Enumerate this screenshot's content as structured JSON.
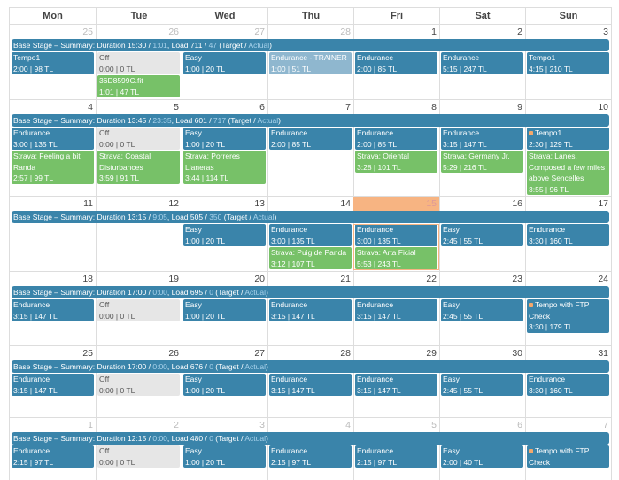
{
  "weekdays": [
    "Mon",
    "Tue",
    "Wed",
    "Thu",
    "Fri",
    "Sat",
    "Sun"
  ],
  "colors": {
    "planned": "#3a84aa",
    "completed": "#77c168",
    "off": "#e6e6e6",
    "trainer": "#8fb7cf",
    "today": "#f7b482"
  },
  "summary_labels": {
    "prefix": "Base Stage – Summary: Duration ",
    "sep": " / ",
    "load": ", Load ",
    "target_label": " (Target / ",
    "actual_label": "Actual",
    "close": ")"
  },
  "weeks": [
    {
      "dates": [
        {
          "n": "25",
          "muted": true
        },
        {
          "n": "26",
          "muted": true
        },
        {
          "n": "27",
          "muted": true
        },
        {
          "n": "28",
          "muted": true
        },
        {
          "n": "1"
        },
        {
          "n": "2"
        },
        {
          "n": "3"
        }
      ],
      "summary": {
        "duration_target": "15:30",
        "duration_actual": "1:01",
        "load_target": "711",
        "load_actual": "47"
      },
      "days": [
        [
          {
            "title": "Tempo1",
            "stats": "2:00 | 98 TL",
            "type": "planned"
          }
        ],
        [
          {
            "title": "Off",
            "stats": "0:00 | 0 TL",
            "type": "off"
          },
          {
            "title": "36D8599C.fit",
            "stats": "1:01 | 47 TL",
            "type": "completed"
          }
        ],
        [
          {
            "title": "Easy",
            "stats": "1:00 | 20 TL",
            "type": "planned"
          }
        ],
        [
          {
            "title": "Endurance - TRAINER",
            "stats": "1:00 | 51 TL",
            "type": "trainer"
          }
        ],
        [
          {
            "title": "Endurance",
            "stats": "2:00 | 85 TL",
            "type": "planned"
          }
        ],
        [
          {
            "title": "Endurance",
            "stats": "5:15 | 247 TL",
            "type": "planned"
          }
        ],
        [
          {
            "title": "Tempo1",
            "stats": "4:15 | 210 TL",
            "type": "planned"
          }
        ]
      ]
    },
    {
      "dates": [
        {
          "n": "4"
        },
        {
          "n": "5"
        },
        {
          "n": "6"
        },
        {
          "n": "7"
        },
        {
          "n": "8"
        },
        {
          "n": "9"
        },
        {
          "n": "10"
        }
      ],
      "summary": {
        "duration_target": "13:45",
        "duration_actual": "23:35",
        "load_target": "601",
        "load_actual": "717"
      },
      "days": [
        [
          {
            "title": "Endurance",
            "stats": "3:00 | 135 TL",
            "type": "planned"
          },
          {
            "title": "Strava: Feeling a bit Randa",
            "stats": "2:57 | 99 TL",
            "type": "completed"
          }
        ],
        [
          {
            "title": "Off",
            "stats": "0:00 | 0 TL",
            "type": "off"
          },
          {
            "title": "Strava: Coastal Disturbances",
            "stats": "3:59 | 91 TL",
            "type": "completed"
          }
        ],
        [
          {
            "title": "Easy",
            "stats": "1:00 | 20 TL",
            "type": "planned"
          },
          {
            "title": "Strava: Porreres Llaneras",
            "stats": "3:44 | 114 TL",
            "type": "completed"
          }
        ],
        [
          {
            "title": "Endurance",
            "stats": "2:00 | 85 TL",
            "type": "planned"
          }
        ],
        [
          {
            "title": "Endurance",
            "stats": "2:00 | 85 TL",
            "type": "planned"
          },
          {
            "title": "Strava: Oriental",
            "stats": "3:28 | 101 TL",
            "type": "completed"
          }
        ],
        [
          {
            "title": "Endurance",
            "stats": "3:15 | 147 TL",
            "type": "planned"
          },
          {
            "title": "Strava: Germany Jr.",
            "stats": "5:29 | 216 TL",
            "type": "completed"
          }
        ],
        [
          {
            "title": "Tempo1",
            "stats": "2:30 | 129 TL",
            "type": "planned",
            "dot": true
          },
          {
            "title": "Strava: Lanes, Composed a few miles above Sencelles",
            "stats": "3:55 | 96 TL",
            "type": "completed"
          }
        ]
      ]
    },
    {
      "dates": [
        {
          "n": "11"
        },
        {
          "n": "12"
        },
        {
          "n": "13"
        },
        {
          "n": "14"
        },
        {
          "n": "15",
          "today": true
        },
        {
          "n": "16"
        },
        {
          "n": "17"
        }
      ],
      "summary": {
        "duration_target": "13:15",
        "duration_actual": "9:05",
        "load_target": "505",
        "load_actual": "350"
      },
      "days": [
        [],
        [],
        [
          {
            "title": "Easy",
            "stats": "1:00 | 20 TL",
            "type": "planned"
          }
        ],
        [
          {
            "title": "Endurance",
            "stats": "3:00 | 135 TL",
            "type": "planned"
          },
          {
            "title": "Strava: Puig de Panda",
            "stats": "3:12 | 107 TL",
            "type": "completed"
          }
        ],
        [
          {
            "title": "Endurance",
            "stats": "3:00 | 135 TL",
            "type": "planned"
          },
          {
            "title": "Strava: Arta Ficial",
            "stats": "5:53 | 243 TL",
            "type": "completed"
          }
        ],
        [
          {
            "title": "Easy",
            "stats": "2:45 | 55 TL",
            "type": "planned"
          }
        ],
        [
          {
            "title": "Endurance",
            "stats": "3:30 | 160 TL",
            "type": "planned"
          }
        ]
      ]
    },
    {
      "dates": [
        {
          "n": "18"
        },
        {
          "n": "19"
        },
        {
          "n": "20"
        },
        {
          "n": "21"
        },
        {
          "n": "22"
        },
        {
          "n": "23"
        },
        {
          "n": "24"
        }
      ],
      "summary": {
        "duration_target": "17:00",
        "duration_actual": "0:00",
        "load_target": "695",
        "load_actual": "0"
      },
      "days": [
        [
          {
            "title": "Endurance",
            "stats": "3:15 | 147 TL",
            "type": "planned"
          }
        ],
        [
          {
            "title": "Off",
            "stats": "0:00 | 0 TL",
            "type": "off"
          }
        ],
        [
          {
            "title": "Easy",
            "stats": "1:00 | 20 TL",
            "type": "planned"
          }
        ],
        [
          {
            "title": "Endurance",
            "stats": "3:15 | 147 TL",
            "type": "planned"
          }
        ],
        [
          {
            "title": "Endurance",
            "stats": "3:15 | 147 TL",
            "type": "planned"
          }
        ],
        [
          {
            "title": "Easy",
            "stats": "2:45 | 55 TL",
            "type": "planned"
          }
        ],
        [
          {
            "title": "Tempo with FTP Check",
            "stats": "3:30 | 179 TL",
            "type": "planned",
            "dot": true
          }
        ]
      ]
    },
    {
      "dates": [
        {
          "n": "25"
        },
        {
          "n": "26"
        },
        {
          "n": "27"
        },
        {
          "n": "28"
        },
        {
          "n": "29"
        },
        {
          "n": "30"
        },
        {
          "n": "31"
        }
      ],
      "summary": {
        "duration_target": "17:00",
        "duration_actual": "0:00",
        "load_target": "676",
        "load_actual": "0"
      },
      "days": [
        [
          {
            "title": "Endurance",
            "stats": "3:15 | 147 TL",
            "type": "planned"
          }
        ],
        [
          {
            "title": "Off",
            "stats": "0:00 | 0 TL",
            "type": "off"
          }
        ],
        [
          {
            "title": "Easy",
            "stats": "1:00 | 20 TL",
            "type": "planned"
          }
        ],
        [
          {
            "title": "Endurance",
            "stats": "3:15 | 147 TL",
            "type": "planned"
          }
        ],
        [
          {
            "title": "Endurance",
            "stats": "3:15 | 147 TL",
            "type": "planned"
          }
        ],
        [
          {
            "title": "Easy",
            "stats": "2:45 | 55 TL",
            "type": "planned"
          }
        ],
        [
          {
            "title": "Endurance",
            "stats": "3:30 | 160 TL",
            "type": "planned"
          }
        ]
      ]
    },
    {
      "dates": [
        {
          "n": "1",
          "muted": true
        },
        {
          "n": "2",
          "muted": true
        },
        {
          "n": "3",
          "muted": true
        },
        {
          "n": "4",
          "muted": true
        },
        {
          "n": "5",
          "muted": true
        },
        {
          "n": "6",
          "muted": true
        },
        {
          "n": "7",
          "muted": true
        }
      ],
      "summary": {
        "duration_target": "12:15",
        "duration_actual": "0:00",
        "load_target": "480",
        "load_actual": "0"
      },
      "days": [
        [
          {
            "title": "Endurance",
            "stats": "2:15 | 97 TL",
            "type": "planned"
          }
        ],
        [
          {
            "title": "Off",
            "stats": "0:00 | 0 TL",
            "type": "off"
          }
        ],
        [
          {
            "title": "Easy",
            "stats": "1:00 | 20 TL",
            "type": "planned"
          }
        ],
        [
          {
            "title": "Endurance",
            "stats": "2:15 | 97 TL",
            "type": "planned"
          }
        ],
        [
          {
            "title": "Endurance",
            "stats": "2:15 | 97 TL",
            "type": "planned"
          }
        ],
        [
          {
            "title": "Easy",
            "stats": "2:00 | 40 TL",
            "type": "planned"
          }
        ],
        [
          {
            "title": "Tempo with FTP Check",
            "type": "planned",
            "dot": true
          }
        ]
      ]
    }
  ]
}
